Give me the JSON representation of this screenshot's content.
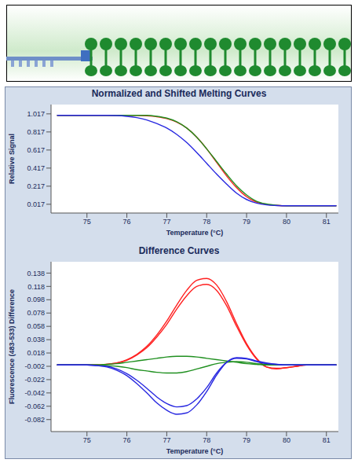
{
  "chart_data": [
    {
      "type": "line",
      "title": "Normalized and Shifted Melting Curves",
      "xlabel": "Temperature (°C)",
      "ylabel": "Relative Signal",
      "x": [
        74.25,
        74.5,
        74.75,
        75,
        75.25,
        75.5,
        75.75,
        76,
        76.25,
        76.5,
        76.75,
        77,
        77.25,
        77.5,
        77.75,
        78,
        78.25,
        78.5,
        78.75,
        79,
        79.25,
        79.5,
        79.75,
        80,
        80.25,
        80.5,
        80.75,
        81,
        81.25
      ],
      "series": [
        {
          "color": "#ff2020",
          "values": [
            1,
            1,
            1,
            1,
            1,
            1,
            1,
            1,
            1,
            0.995,
            0.985,
            0.965,
            0.925,
            0.86,
            0.76,
            0.63,
            0.48,
            0.33,
            0.2,
            0.1,
            0.04,
            0.015,
            0.005,
            0,
            0,
            0,
            0,
            0,
            0
          ]
        },
        {
          "color": "#209020",
          "values": [
            1,
            1,
            1,
            1,
            1,
            1,
            1,
            1,
            1,
            1,
            0.99,
            0.97,
            0.93,
            0.86,
            0.76,
            0.63,
            0.49,
            0.35,
            0.22,
            0.12,
            0.05,
            0.02,
            0.006,
            0,
            0,
            0,
            0,
            0,
            0
          ]
        },
        {
          "color": "#2828e0",
          "values": [
            1,
            1,
            1,
            1,
            1,
            1,
            0.998,
            0.99,
            0.975,
            0.95,
            0.91,
            0.86,
            0.79,
            0.7,
            0.59,
            0.47,
            0.35,
            0.24,
            0.14,
            0.07,
            0.03,
            0.01,
            0.003,
            0,
            0,
            0,
            0,
            0,
            0
          ]
        }
      ],
      "xlim": [
        74.1,
        81.3
      ],
      "xticks": [
        75,
        76,
        77,
        78,
        79,
        80,
        81
      ],
      "ylim": [
        -0.08,
        1.12
      ],
      "yticks": [
        0.017,
        0.217,
        0.417,
        0.617,
        0.817,
        1.017
      ],
      "grid": false
    },
    {
      "type": "line",
      "title": "Difference Curves",
      "xlabel": "Temperature (°C)",
      "ylabel": "Fluorescence (483-533) Difference",
      "x": [
        74.25,
        74.5,
        74.75,
        75,
        75.25,
        75.5,
        75.75,
        76,
        76.25,
        76.5,
        76.75,
        77,
        77.25,
        77.5,
        77.75,
        78,
        78.25,
        78.5,
        78.75,
        79,
        79.25,
        79.5,
        79.75,
        80,
        80.25,
        80.5,
        80.75,
        81,
        81.25
      ],
      "series": [
        {
          "color": "#ff2020",
          "values": [
            0,
            0,
            0,
            0,
            0,
            0.001,
            0.003,
            0.008,
            0.016,
            0.028,
            0.045,
            0.066,
            0.09,
            0.112,
            0.127,
            0.13,
            0.12,
            0.095,
            0.062,
            0.032,
            0.01,
            -0.003,
            -0.006,
            -0.004,
            -0.002,
            0,
            0,
            0,
            0
          ]
        },
        {
          "color": "#ff2020",
          "values": [
            0,
            0,
            0,
            0,
            0,
            0.001,
            0.003,
            0.007,
            0.015,
            0.026,
            0.042,
            0.061,
            0.084,
            0.104,
            0.118,
            0.121,
            0.112,
            0.089,
            0.058,
            0.03,
            0.009,
            -0.003,
            -0.005,
            -0.004,
            -0.002,
            0,
            0,
            0,
            0
          ]
        },
        {
          "color": "#209020",
          "values": [
            0,
            0,
            0,
            0,
            0,
            0.001,
            0.002,
            0.004,
            0.006,
            0.008,
            0.01,
            0.012,
            0.013,
            0.013,
            0.012,
            0.01,
            0.008,
            0.006,
            0.004,
            0.002,
            0.001,
            0,
            0,
            0,
            0,
            0,
            0,
            0,
            0
          ]
        },
        {
          "color": "#209020",
          "values": [
            0,
            0,
            0,
            0,
            0,
            -0.001,
            -0.002,
            -0.004,
            -0.007,
            -0.009,
            -0.011,
            -0.012,
            -0.012,
            -0.01,
            -0.006,
            -0.002,
            0.002,
            0.004,
            0.005,
            0.004,
            0.002,
            0.001,
            0,
            0,
            0,
            0,
            0,
            0,
            0
          ]
        },
        {
          "color": "#2828e0",
          "values": [
            0,
            0,
            0,
            0,
            -0.001,
            -0.003,
            -0.008,
            -0.016,
            -0.028,
            -0.042,
            -0.057,
            -0.068,
            -0.074,
            -0.072,
            -0.06,
            -0.04,
            -0.015,
            0.004,
            0.011,
            0.01,
            0.006,
            0.003,
            0.001,
            0,
            0,
            0,
            0,
            0,
            0
          ]
        },
        {
          "color": "#2828e0",
          "values": [
            0,
            0,
            0,
            0,
            -0.001,
            -0.002,
            -0.006,
            -0.013,
            -0.023,
            -0.035,
            -0.048,
            -0.058,
            -0.063,
            -0.061,
            -0.051,
            -0.034,
            -0.012,
            0.004,
            0.01,
            0.009,
            0.005,
            0.002,
            0.001,
            0,
            0,
            0,
            0,
            0,
            0
          ]
        }
      ],
      "xlim": [
        74.1,
        81.3
      ],
      "xticks": [
        75,
        76,
        77,
        78,
        79,
        80,
        81
      ],
      "ylim": [
        -0.1,
        0.155
      ],
      "yticks": [
        -0.082,
        -0.062,
        -0.042,
        -0.022,
        -0.002,
        0.018,
        0.038,
        0.058,
        0.078,
        0.098,
        0.118,
        0.138
      ],
      "grid": false
    }
  ]
}
